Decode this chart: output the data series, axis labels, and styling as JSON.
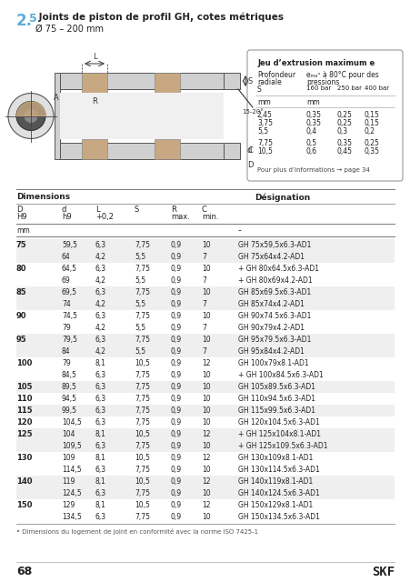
{
  "title_num": "2.5",
  "title_text": " Joints de piston de profil GH, cotes métriques",
  "title_sub": "Ø 75 – 200 mm",
  "page_num": "68",
  "brand": "SKF",
  "rows": [
    [
      "75",
      "59,5",
      "6,3",
      "7,75",
      "0,9",
      "10",
      "GH 75x59,5x6.3-AD1"
    ],
    [
      "",
      "64",
      "4,2",
      "5,5",
      "0,9",
      "7",
      "GH 75x64x4.2-AD1"
    ],
    [
      "80",
      "64,5",
      "6,3",
      "7,75",
      "0,9",
      "10",
      "+ GH 80x64.5x6.3-AD1"
    ],
    [
      "",
      "69",
      "4,2",
      "5,5",
      "0,9",
      "7",
      "+ GH 80x69x4.2-AD1"
    ],
    [
      "85",
      "69,5",
      "6,3",
      "7,75",
      "0,9",
      "10",
      "GH 85x69.5x6.3-AD1"
    ],
    [
      "",
      "74",
      "4,2",
      "5,5",
      "0,9",
      "7",
      "GH 85x74x4.2-AD1"
    ],
    [
      "90",
      "74,5",
      "6,3",
      "7,75",
      "0,9",
      "10",
      "GH 90x74.5x6.3-AD1"
    ],
    [
      "",
      "79",
      "4,2",
      "5,5",
      "0,9",
      "7",
      "GH 90x79x4.2-AD1"
    ],
    [
      "95",
      "79,5",
      "6,3",
      "7,75",
      "0,9",
      "10",
      "GH 95x79.5x6.3-AD1"
    ],
    [
      "",
      "84",
      "4,2",
      "5,5",
      "0,9",
      "7",
      "GH 95x84x4.2-AD1"
    ],
    [
      "100",
      "79",
      "8,1",
      "10,5",
      "0,9",
      "12",
      "GH 100x79x8.1-AD1"
    ],
    [
      "",
      "84,5",
      "6,3",
      "7,75",
      "0,9",
      "10",
      "+ GH 100x84.5x6.3-AD1"
    ],
    [
      "105",
      "89,5",
      "6,3",
      "7,75",
      "0,9",
      "10",
      "GH 105x89.5x6.3-AD1"
    ],
    [
      "110",
      "94,5",
      "6,3",
      "7,75",
      "0,9",
      "10",
      "GH 110x94.5x6.3-AD1"
    ],
    [
      "115",
      "99,5",
      "6,3",
      "7,75",
      "0,9",
      "10",
      "GH 115x99.5x6.3-AD1"
    ],
    [
      "120",
      "104,5",
      "6,3",
      "7,75",
      "0,9",
      "10",
      "GH 120x104.5x6.3-AD1"
    ],
    [
      "125",
      "104",
      "8,1",
      "10,5",
      "0,9",
      "12",
      "+ GH 125x104x8.1-AD1"
    ],
    [
      "",
      "109,5",
      "6,3",
      "7,75",
      "0,9",
      "10",
      "+ GH 125x109.5x6.3-AD1"
    ],
    [
      "130",
      "109",
      "8,1",
      "10,5",
      "0,9",
      "12",
      "GH 130x109x8.1-AD1"
    ],
    [
      "",
      "114,5",
      "6,3",
      "7,75",
      "0,9",
      "10",
      "GH 130x114.5x6.3-AD1"
    ],
    [
      "140",
      "119",
      "8,1",
      "10,5",
      "0,9",
      "12",
      "GH 140x119x8.1-AD1"
    ],
    [
      "",
      "124,5",
      "6,3",
      "7,75",
      "0,9",
      "10",
      "GH 140x124.5x6.3-AD1"
    ],
    [
      "150",
      "129",
      "8,1",
      "10,5",
      "0,9",
      "12",
      "GH 150x129x8.1-AD1"
    ],
    [
      "",
      "134,5",
      "6,3",
      "7,75",
      "0,9",
      "10",
      "GH 150x134.5x6.3-AD1"
    ]
  ],
  "footnote": "• Dimensions du logement de joint en conformité avec la norme ISO 7425-1",
  "infobox_title": "Jeu d’extrusion maximum e",
  "infobox_data": [
    [
      "2,45",
      "0,35",
      "0,25",
      "0,15"
    ],
    [
      "3,75",
      "0,35",
      "0,25",
      "0,15"
    ],
    [
      "5,5",
      "0,4",
      "0,3",
      "0,2"
    ],
    [
      "7,75",
      "0,5",
      "0,35",
      "0,25"
    ],
    [
      "10,5",
      "0,6",
      "0,45",
      "0,35"
    ]
  ],
  "infobox_note": "Pour plus d’informations → page 34",
  "accent_color": "#5bafd6"
}
